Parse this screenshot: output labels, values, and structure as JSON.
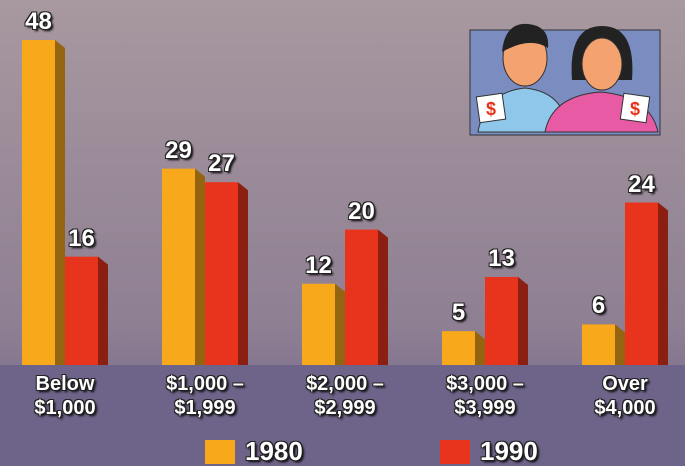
{
  "chart_data": {
    "type": "bar",
    "categories": [
      "Below\n$1,000",
      "$1,000 –\n$1,999",
      "$2,000 –\n$2,999",
      "$3,000 –\n$3,999",
      "Over\n$4,000"
    ],
    "series": [
      {
        "name": "1980",
        "color": "#f7a81b",
        "values": [
          48,
          29,
          12,
          5,
          6
        ]
      },
      {
        "name": "1990",
        "color": "#e8341c",
        "values": [
          16,
          27,
          20,
          13,
          24
        ]
      }
    ]
  }
}
